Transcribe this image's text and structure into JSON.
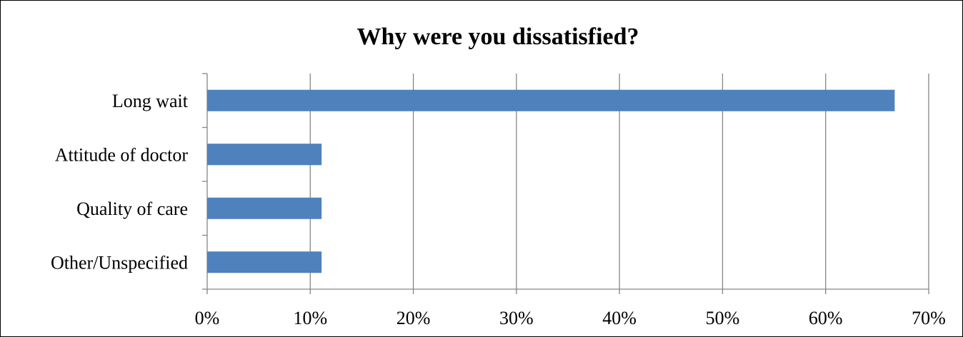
{
  "chart_data": {
    "type": "bar",
    "orientation": "horizontal",
    "title": "Why were you dissatisfied?",
    "categories": [
      "Long wait",
      "Attitude of doctor",
      "Quality of care",
      "Other/Unspecified"
    ],
    "values": [
      66.7,
      11.1,
      11.1,
      11.1
    ],
    "xlim": [
      0,
      70
    ],
    "x_ticks": [
      "0%",
      "10%",
      "20%",
      "30%",
      "40%",
      "50%",
      "60%",
      "70%"
    ],
    "x_tick_values": [
      0,
      10,
      20,
      30,
      40,
      50,
      60,
      70
    ],
    "grid": "vertical",
    "legend": "none",
    "colors": {
      "bar": "#4f81bd",
      "grid": "#868686",
      "axis": "#868686"
    }
  }
}
